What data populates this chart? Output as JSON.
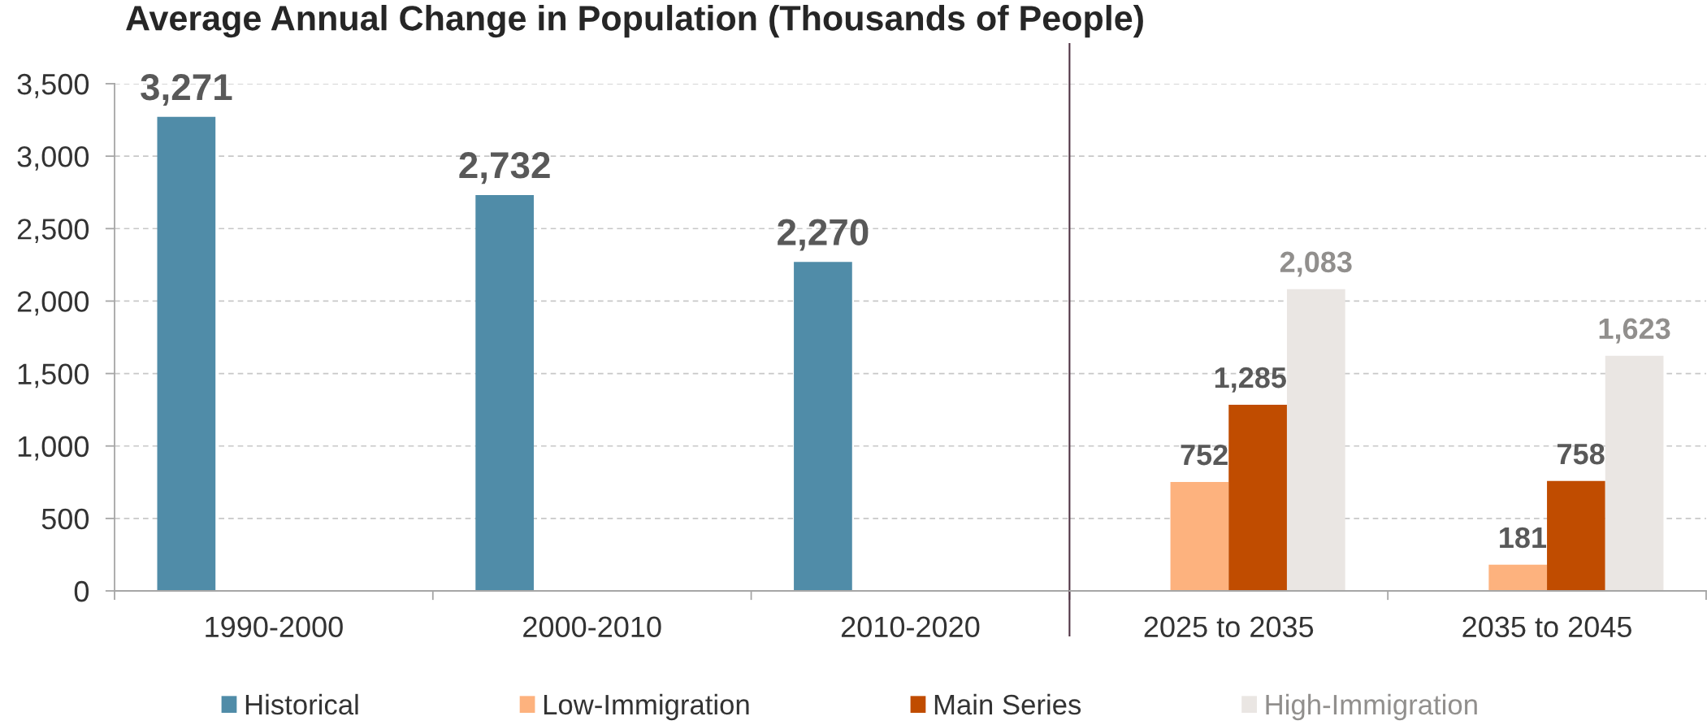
{
  "chart_data": [
    {
      "type": "bar",
      "title": "Average Annual Change in Population (Thousands of People)",
      "categories": [
        "1990-2000",
        "2000-2010",
        "2010-2020"
      ],
      "series": [
        {
          "name": "Historical",
          "color": "#508ca8",
          "values": [
            3271,
            2732,
            2270
          ],
          "value_labels": [
            "3,271",
            "2,732",
            "2,270"
          ]
        }
      ],
      "ylim": [
        0,
        3500
      ],
      "yticks": [
        0,
        500,
        {
          "value": 1000,
          "label": "1,000"
        },
        {
          "value": 1500,
          "label": "1,500"
        },
        {
          "value": 2000,
          "label": "2,000"
        },
        {
          "value": 2500,
          "label": "2,500"
        },
        {
          "value": 3000,
          "label": "3,000"
        },
        {
          "value": 3500,
          "label": "3,500"
        }
      ],
      "grid": "y",
      "legend": "bottom"
    },
    {
      "type": "bar",
      "categories": [
        "2025 to 2035",
        "2035 to 2045"
      ],
      "series": [
        {
          "name": "Low-Immigration",
          "color": "#fdb27e",
          "values": [
            752,
            181
          ],
          "value_labels": [
            "752",
            "181"
          ]
        },
        {
          "name": "Main Series",
          "color": "#c04c00",
          "values": [
            1285,
            758
          ],
          "value_labels": [
            "1,285",
            "758"
          ]
        },
        {
          "name": "High-Immigration",
          "color": "#eae6e3",
          "values": [
            2083,
            1623
          ],
          "value_labels": [
            "2,083",
            "1,623"
          ]
        }
      ],
      "ylim": [
        0,
        3500
      ],
      "yticks": [
        {
          "value": 0,
          "label": null
        },
        {
          "value": 500,
          "label": null
        },
        {
          "value": 1000,
          "label": null
        },
        {
          "value": 1500,
          "label": null
        },
        {
          "value": 2000,
          "label": null
        },
        {
          "value": 2500,
          "label": null
        },
        {
          "value": 3000,
          "label": null
        },
        {
          "value": 3500,
          "label": null
        }
      ],
      "grid": "y",
      "legend": "bottom",
      "tick_labels": "x"
    }
  ]
}
